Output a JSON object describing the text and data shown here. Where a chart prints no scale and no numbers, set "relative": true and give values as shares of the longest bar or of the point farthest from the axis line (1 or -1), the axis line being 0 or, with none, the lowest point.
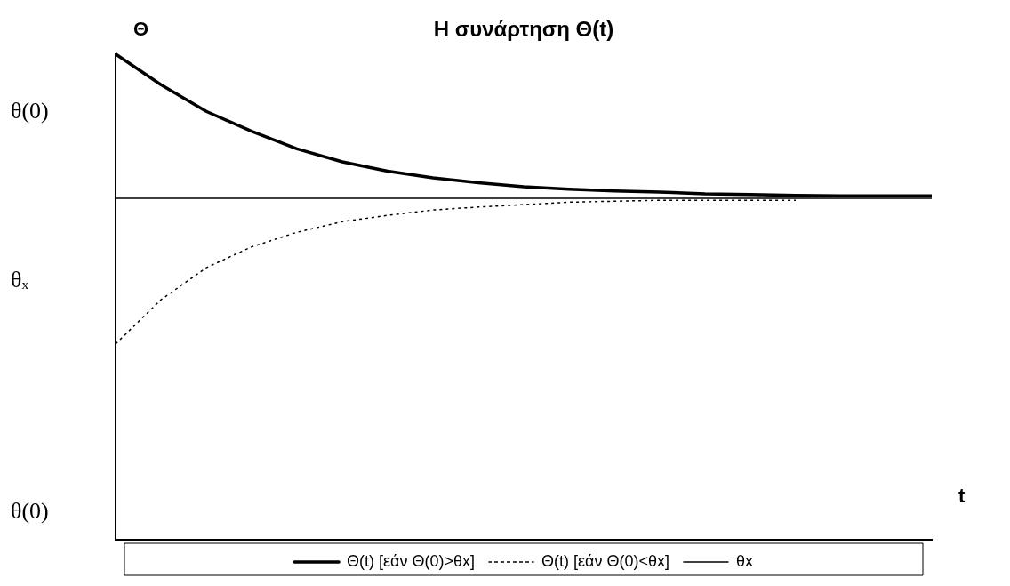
{
  "chart_data": {
    "type": "line",
    "title": "Η συνάρτηση Θ(t)",
    "xlabel": "t",
    "ylabel": "Θ",
    "relative": true,
    "legend": "bottom",
    "grid": false,
    "annotations": [
      "θ(0)",
      "θₓ",
      "θ(0)"
    ],
    "categories": [
      null,
      null,
      null,
      null,
      null,
      null,
      null,
      null,
      null,
      null,
      null,
      null,
      null,
      null,
      null,
      null,
      null,
      null,
      null
    ],
    "series": [
      {
        "name": "Θ(t) [εάν Θ(0)>θx]",
        "color": "#000000",
        "line_style": "solid",
        "values": [
          1.0,
          0.937,
          0.882,
          0.841,
          0.805,
          0.778,
          0.759,
          0.745,
          0.735,
          0.727,
          0.722,
          0.718,
          0.716,
          0.712,
          0.711,
          0.709,
          0.708,
          0.708,
          0.708
        ]
      },
      {
        "name": "Θ(t) [εάν Θ(0)<θx]",
        "color": "#000000",
        "line_style": "dotted",
        "values": [
          0.403,
          0.494,
          0.56,
          0.603,
          0.633,
          0.655,
          0.668,
          0.679,
          0.685,
          0.69,
          0.695,
          0.697,
          0.699,
          0.699,
          0.699,
          0.699,
          null,
          null,
          null
        ]
      },
      {
        "name": "θx",
        "color": "#000000",
        "line_style": "solid",
        "values": [
          0.703,
          0.703,
          0.703,
          0.703,
          0.703,
          0.703,
          0.703,
          0.703,
          0.703,
          0.703,
          0.703,
          0.703,
          0.703,
          0.703,
          0.703,
          0.703,
          0.703,
          0.703,
          0.703
        ]
      }
    ]
  }
}
